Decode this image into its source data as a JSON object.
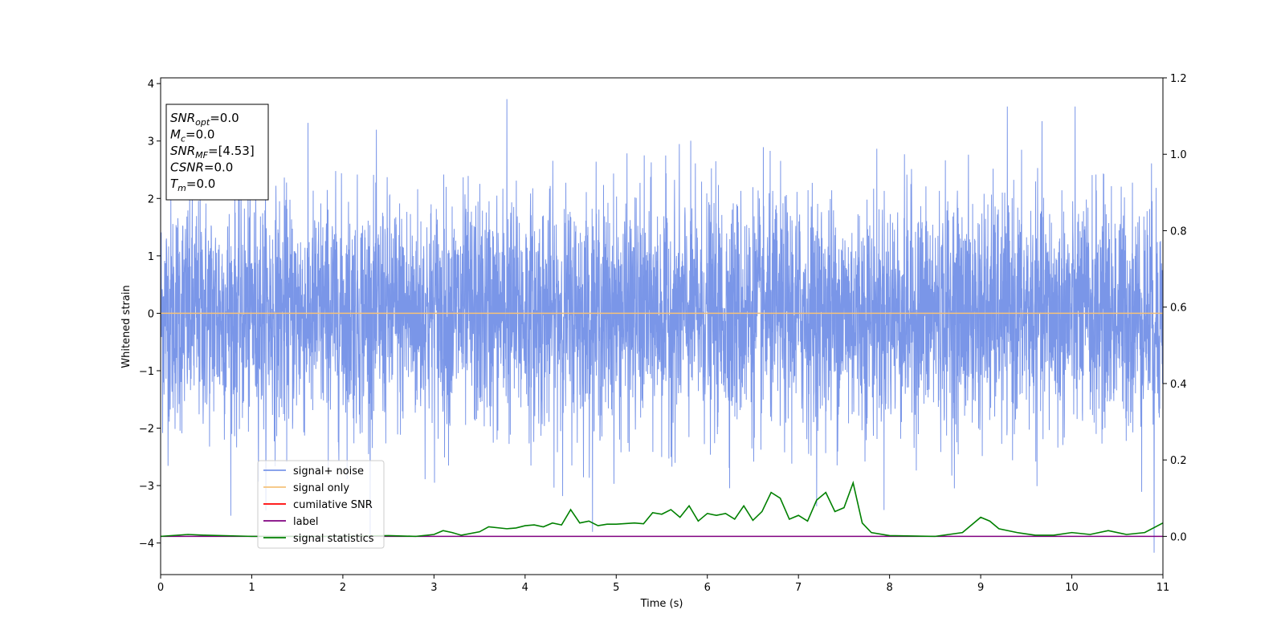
{
  "chart_data": {
    "type": "line",
    "xlabel": "Time (s)",
    "ylabel": "Whitened strain",
    "xlim": [
      0,
      11
    ],
    "ylim": [
      -4.55,
      4.1
    ],
    "y2lim": [
      -0.1,
      1.2
    ],
    "xticks": [
      0,
      1,
      2,
      3,
      4,
      5,
      6,
      7,
      8,
      9,
      10,
      11
    ],
    "yticks": [
      -4,
      -3,
      -2,
      -1,
      0,
      1,
      2,
      3,
      4
    ],
    "y2ticks": [
      0.0,
      0.2,
      0.4,
      0.6,
      0.8,
      1.0,
      1.2
    ],
    "grid": false,
    "legend_position": "lower-left",
    "annotation": [
      {
        "base": "SNR",
        "sub": "opt",
        "value": "=0.0"
      },
      {
        "base": "M",
        "sub": "c",
        "value": "=0.0"
      },
      {
        "base": "SNR",
        "sub": "MF",
        "value": "=[4.53]"
      },
      {
        "base": "CSNR",
        "sub": "",
        "value": "=0.0"
      },
      {
        "base": "T",
        "sub": "m",
        "value": "=0.0"
      }
    ],
    "series": [
      {
        "name": "signal+ noise",
        "color": "#7a96e8",
        "axis": "left",
        "description_values": {
          "sigma": 0.75,
          "peak_max": 3.73,
          "peak_min": -4.17
        }
      },
      {
        "name": "signal only",
        "color": "#f5c27a",
        "axis": "left",
        "x": [
          0,
          11
        ],
        "y": [
          0,
          0
        ]
      },
      {
        "name": "cumilative SNR",
        "color": "#ff0000",
        "axis": "right",
        "x": [],
        "y": []
      },
      {
        "name": "label",
        "color": "#800080",
        "axis": "right",
        "x": [
          0,
          11
        ],
        "y": [
          0.0,
          0.0
        ]
      },
      {
        "name": "signal statistics",
        "color": "#008000",
        "axis": "right",
        "x": [
          0,
          0.3,
          0.5,
          1.0,
          1.5,
          2.0,
          2.5,
          2.8,
          3.0,
          3.1,
          3.2,
          3.3,
          3.5,
          3.6,
          3.8,
          3.9,
          4.0,
          4.1,
          4.2,
          4.3,
          4.4,
          4.5,
          4.6,
          4.7,
          4.8,
          4.9,
          5.0,
          5.2,
          5.3,
          5.4,
          5.5,
          5.6,
          5.7,
          5.8,
          5.9,
          6.0,
          6.1,
          6.2,
          6.3,
          6.4,
          6.5,
          6.6,
          6.7,
          6.8,
          6.9,
          7.0,
          7.1,
          7.2,
          7.3,
          7.4,
          7.5,
          7.6,
          7.7,
          7.8,
          8.0,
          8.5,
          8.8,
          9.0,
          9.1,
          9.2,
          9.4,
          9.6,
          9.8,
          10.0,
          10.2,
          10.4,
          10.6,
          10.8,
          11.0
        ],
        "y": [
          0.0,
          0.005,
          0.003,
          0.0,
          0.0,
          0.0,
          0.002,
          0.0,
          0.005,
          0.015,
          0.01,
          0.003,
          0.012,
          0.025,
          0.02,
          0.022,
          0.028,
          0.03,
          0.025,
          0.035,
          0.03,
          0.07,
          0.035,
          0.04,
          0.028,
          0.032,
          0.032,
          0.035,
          0.033,
          0.062,
          0.058,
          0.07,
          0.05,
          0.08,
          0.04,
          0.06,
          0.055,
          0.06,
          0.045,
          0.08,
          0.042,
          0.065,
          0.115,
          0.1,
          0.045,
          0.055,
          0.04,
          0.095,
          0.115,
          0.065,
          0.075,
          0.14,
          0.035,
          0.01,
          0.002,
          0.0,
          0.01,
          0.05,
          0.04,
          0.02,
          0.01,
          0.003,
          0.003,
          0.01,
          0.005,
          0.015,
          0.005,
          0.01,
          0.035
        ]
      }
    ]
  }
}
